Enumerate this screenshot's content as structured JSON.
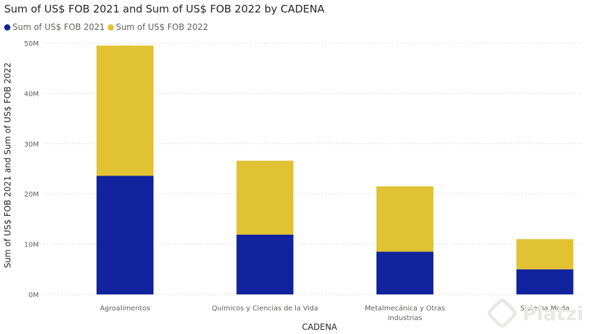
{
  "chart_data": {
    "type": "bar",
    "stacked": true,
    "title": "Sum of US$ FOB 2021 and Sum of US$ FOB 2022 by CADENA",
    "xlabel": "CADENA",
    "ylabel": "Sum of US$ FOB 2021 and Sum of US$ FOB 2022",
    "categories": [
      "Agroalimentos",
      "Químicos y Ciencias de la Vida",
      "Metalmecánica y Otras Industrias",
      "Sistema Moda"
    ],
    "category_lines": [
      [
        "Agroalimentos"
      ],
      [
        "Químicos y Ciencias de la Vida"
      ],
      [
        "Metalmecánica y Otras",
        "Industrias"
      ],
      [
        "Sistema Moda"
      ]
    ],
    "series": [
      {
        "name": "Sum of US$ FOB 2021",
        "color": "#12239e",
        "values": [
          23.6,
          11.9,
          8.5,
          5.0
        ]
      },
      {
        "name": "Sum of US$ FOB 2022",
        "color": "#e1c233",
        "values": [
          25.9,
          14.7,
          13.0,
          6.0
        ]
      }
    ],
    "ylim": [
      0,
      50
    ],
    "yticks": [
      0,
      10,
      20,
      30,
      40,
      50
    ],
    "ytick_labels": [
      "0M",
      "10M",
      "20M",
      "30M",
      "40M",
      "50M"
    ],
    "grid": true,
    "legend_position": "top-left"
  },
  "watermark": {
    "text": "Platzi",
    "icon": "platzi-logo-icon"
  }
}
